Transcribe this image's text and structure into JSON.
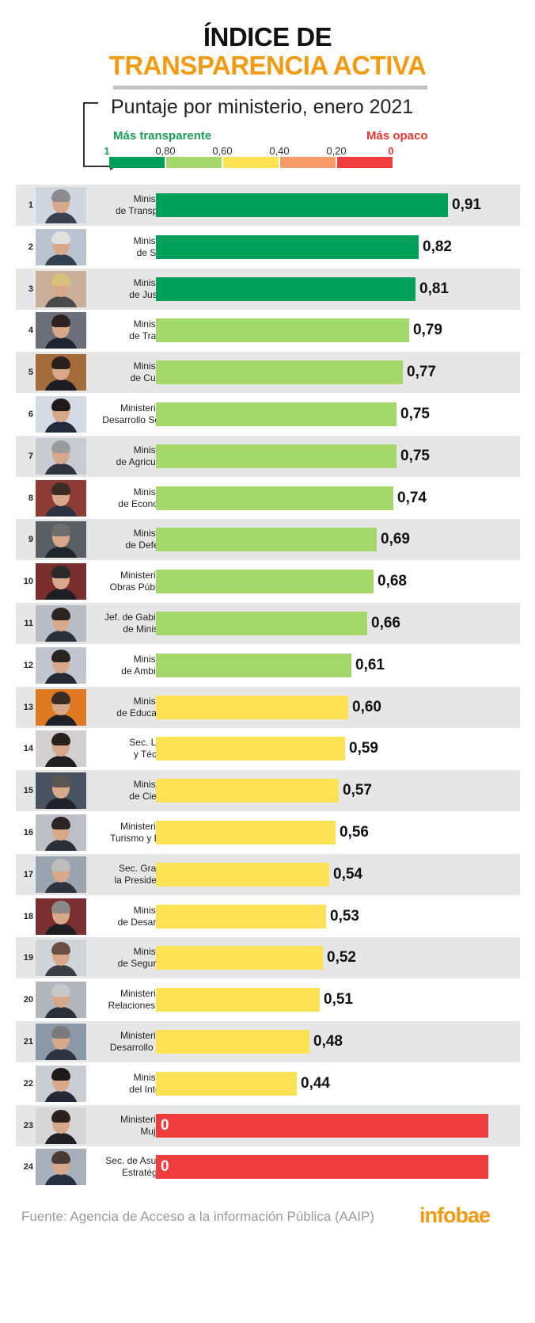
{
  "header": {
    "title_line1": "ÍNDICE DE",
    "title_line2": "TRANSPARENCIA ACTIVA",
    "subtitle": "Puntaje por ministerio, enero 2021"
  },
  "legend": {
    "left_label": "Más transparente",
    "right_label": "Más opaco",
    "ticks": [
      "1",
      "0,80",
      "0,60",
      "0,40",
      "0,20",
      "0"
    ],
    "segments": [
      {
        "color": "#00a05a"
      },
      {
        "color": "#a5d86b"
      },
      {
        "color": "#fde254"
      },
      {
        "color": "#f79a69"
      },
      {
        "color": "#ef3c3c"
      }
    ]
  },
  "chart_data": {
    "type": "bar",
    "orientation": "horizontal",
    "xlim": [
      0,
      1
    ],
    "categories": [
      [
        "Ministerio",
        "de Transporte"
      ],
      [
        "Ministerio",
        "de Salud"
      ],
      [
        "Ministerio",
        "de Justicia"
      ],
      [
        "Ministerio",
        "de Trabajo"
      ],
      [
        "Ministerio",
        "de Cultura"
      ],
      [
        "Ministerio de",
        "Desarrollo Social"
      ],
      [
        "Ministerio",
        "de Agricultura"
      ],
      [
        "Ministerio",
        "de Economía"
      ],
      [
        "Ministerio",
        "de Defensa"
      ],
      [
        "Ministerio de",
        "Obras Públicas"
      ],
      [
        "Jef. de Gabinete",
        "de Ministros"
      ],
      [
        "Ministerio",
        "de Ambiente"
      ],
      [
        "Ministerio",
        "de Educación"
      ],
      [
        "Sec. Legal",
        "y Técnica"
      ],
      [
        "Ministerio",
        "de Ciencia"
      ],
      [
        "Ministerio de",
        "Turismo y Dep."
      ],
      [
        "Sec. Gral. de",
        "la Presidencia"
      ],
      [
        "Ministerio",
        "de Desarrollo"
      ],
      [
        "Ministerio",
        "de Seguridad"
      ],
      [
        "Ministerio de",
        "Relaciones Ext."
      ],
      [
        "Ministerio de",
        "Desarrollo Terr."
      ],
      [
        "Ministerio",
        "del Interior"
      ],
      [
        "Ministerio de",
        "Mujeres"
      ],
      [
        "Sec. de Asuntos",
        "Estratégicos"
      ]
    ],
    "ranks": [
      "1",
      "2",
      "3",
      "4",
      "5",
      "6",
      "7",
      "8",
      "9",
      "10",
      "11",
      "12",
      "13",
      "14",
      "15",
      "16",
      "17",
      "18",
      "19",
      "20",
      "21",
      "22",
      "23",
      "24"
    ],
    "values": [
      0.91,
      0.82,
      0.81,
      0.79,
      0.77,
      0.75,
      0.75,
      0.74,
      0.69,
      0.68,
      0.66,
      0.61,
      0.6,
      0.59,
      0.57,
      0.56,
      0.54,
      0.53,
      0.52,
      0.51,
      0.48,
      0.44,
      0,
      0
    ],
    "value_labels": [
      "0,91",
      "0,82",
      "0,81",
      "0,79",
      "0,77",
      "0,75",
      "0,75",
      "0,74",
      "0,69",
      "0,68",
      "0,66",
      "0,61",
      "0,60",
      "0,59",
      "0,57",
      "0,56",
      "0,54",
      "0,53",
      "0,52",
      "0,51",
      "0,48",
      "0,44",
      "0",
      "0"
    ],
    "bar_colors": [
      "#00a05a",
      "#00a05a",
      "#00a05a",
      "#a5d86b",
      "#a5d86b",
      "#a5d86b",
      "#a5d86b",
      "#a5d86b",
      "#a5d86b",
      "#a5d86b",
      "#a5d86b",
      "#a5d86b",
      "#fde254",
      "#fde254",
      "#fde254",
      "#fde254",
      "#fde254",
      "#fde254",
      "#fde254",
      "#fde254",
      "#fde254",
      "#fde254",
      "#ef3c3c",
      "#ef3c3c"
    ]
  },
  "photos": [
    {
      "bg": "#cfd6df",
      "hair": "#8c8c8c",
      "suit": "#3a4150"
    },
    {
      "bg": "#b9c3cf",
      "hair": "#e0e0e0",
      "suit": "#33404f"
    },
    {
      "bg": "#c8b09a",
      "hair": "#d9c07a",
      "suit": "#4a4a4a"
    },
    {
      "bg": "#6b6f7a",
      "hair": "#2b2220",
      "suit": "#1f2430"
    },
    {
      "bg": "#a46c3a",
      "hair": "#2a201c",
      "suit": "#1c1c22"
    },
    {
      "bg": "#d4dbe4",
      "hair": "#1f1a18",
      "suit": "#222a3a"
    },
    {
      "bg": "#c8ccd2",
      "hair": "#9a9a9a",
      "suit": "#2e3340"
    },
    {
      "bg": "#8c3b35",
      "hair": "#3a2c22",
      "suit": "#2b3340"
    },
    {
      "bg": "#5a5f66",
      "hair": "#6e6e6e",
      "suit": "#20252c"
    },
    {
      "bg": "#7a2d2d",
      "hair": "#2a2a2a",
      "suit": "#1c1e24"
    },
    {
      "bg": "#b8bcc4",
      "hair": "#2c241e",
      "suit": "#2c3038"
    },
    {
      "bg": "#c2c7cf",
      "hair": "#2a2420",
      "suit": "#242a34"
    },
    {
      "bg": "#e07a20",
      "hair": "#3a2d24",
      "suit": "#1e2228"
    },
    {
      "bg": "#d2cfd0",
      "hair": "#2a201c",
      "suit": "#202020"
    },
    {
      "bg": "#4a5361",
      "hair": "#5a5550",
      "suit": "#1d222b"
    },
    {
      "bg": "#bcc0c6",
      "hair": "#2a2522",
      "suit": "#2a2e36"
    },
    {
      "bg": "#9aa4ae",
      "hair": "#bdbdbd",
      "suit": "#2c333e"
    },
    {
      "bg": "#7a2f30",
      "hair": "#8a8a8a",
      "suit": "#1d1d22"
    },
    {
      "bg": "#cfd4d9",
      "hair": "#6a5040",
      "suit": "#3c3c44"
    },
    {
      "bg": "#b0b6bc",
      "hair": "#c8c8c8",
      "suit": "#2a2f38"
    },
    {
      "bg": "#8a98a8",
      "hair": "#7a7a7a",
      "suit": "#2f3540"
    },
    {
      "bg": "#c9cdd4",
      "hair": "#1e1a18",
      "suit": "#222836"
    },
    {
      "bg": "#d6d6d6",
      "hair": "#2a201c",
      "suit": "#1f1f24"
    },
    {
      "bg": "#a7b0ba",
      "hair": "#4a3c32",
      "suit": "#283040"
    }
  ],
  "footer": {
    "source": "Fuente: Agencia de Acceso a la información Pública (AAIP)",
    "logo": "infobae"
  }
}
